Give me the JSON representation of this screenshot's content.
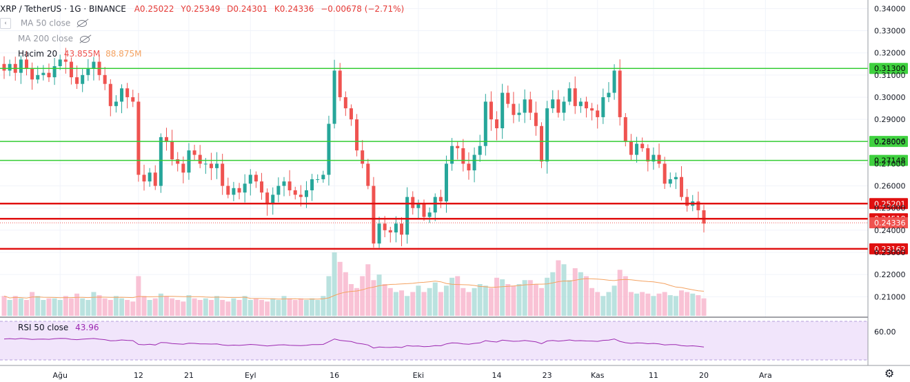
{
  "header": {
    "symbol": "XRP / TetherUS · 1G · BINANCE",
    "open": "A0.25022",
    "high": "Y0.25349",
    "low": "D0.24301",
    "close": "K0.24336",
    "change": "−0.00678 (−2.71%)"
  },
  "indicators": {
    "ma50": "MA 50 close",
    "ma200": "MA 200 close",
    "volume_label": "Hacim 20",
    "volume_v1": "43.855M",
    "volume_v2": "88.875M",
    "rsi_label": "RSI 50 close",
    "rsi_value": "43.96"
  },
  "colors": {
    "up": "#26a69a",
    "down": "#ef5350",
    "support_line": "#e01010",
    "resistance_line": "#33cc33",
    "rsi_line": "#9c27b0",
    "vol_ma": "#f4a261"
  },
  "chart_data": {
    "type": "candlestick",
    "symbol": "XRP / TetherUS",
    "interval": "1G",
    "exchange": "BINANCE",
    "y_range": [
      0.2045,
      0.3423
    ],
    "y_ticks": [
      "0.34000",
      "0.33000",
      "0.32000",
      "0.31000",
      "0.30000",
      "0.29000",
      "0.28000",
      "0.27000",
      "0.26000",
      "0.25000",
      "0.24000",
      "0.23000",
      "0.22000",
      "0.21000"
    ],
    "y_tick_values": [
      0.34,
      0.33,
      0.32,
      0.31,
      0.3,
      0.29,
      0.28,
      0.27,
      0.26,
      0.25,
      0.24,
      0.23,
      0.22,
      0.21
    ],
    "x_labels": [
      {
        "label": "Ağu",
        "index": 10
      },
      {
        "label": "12",
        "index": 24
      },
      {
        "label": "21",
        "index": 33
      },
      {
        "label": "Eyl",
        "index": 44
      },
      {
        "label": "16",
        "index": 59
      },
      {
        "label": "Eki",
        "index": 74
      },
      {
        "label": "14",
        "index": 88
      },
      {
        "label": "23",
        "index": 97
      },
      {
        "label": "Kas",
        "index": 106
      },
      {
        "label": "11",
        "index": 116
      },
      {
        "label": "20",
        "index": 125
      },
      {
        "label": "Ara",
        "index": 136
      }
    ],
    "horizontal_levels": [
      {
        "value": 0.313,
        "label": "0.31300",
        "color": "green"
      },
      {
        "value": 0.28006,
        "label": "0.28006",
        "color": "green"
      },
      {
        "value": 0.27148,
        "label": "0.27148",
        "color": "green"
      },
      {
        "value": 0.25201,
        "label": "0.25201",
        "color": "red"
      },
      {
        "value": 0.24518,
        "label": "0.24518",
        "color": "red"
      },
      {
        "value": 0.23162,
        "label": "0.23162",
        "color": "red"
      }
    ],
    "last_price": {
      "value": 0.24336,
      "label": "0.24336"
    },
    "closes": [
      0.312,
      0.315,
      0.311,
      0.317,
      0.313,
      0.308,
      0.31,
      0.311,
      0.309,
      0.314,
      0.317,
      0.316,
      0.309,
      0.306,
      0.31,
      0.313,
      0.316,
      0.31,
      0.306,
      0.296,
      0.298,
      0.304,
      0.3,
      0.298,
      0.265,
      0.262,
      0.266,
      0.26,
      0.282,
      0.28,
      0.272,
      0.27,
      0.266,
      0.276,
      0.274,
      0.27,
      0.27,
      0.268,
      0.27,
      0.26,
      0.256,
      0.259,
      0.257,
      0.261,
      0.265,
      0.262,
      0.257,
      0.252,
      0.256,
      0.26,
      0.262,
      0.258,
      0.256,
      0.255,
      0.258,
      0.263,
      0.263,
      0.265,
      0.288,
      0.312,
      0.3,
      0.295,
      0.29,
      0.276,
      0.27,
      0.26,
      0.234,
      0.243,
      0.24,
      0.239,
      0.243,
      0.238,
      0.255,
      0.25,
      0.252,
      0.246,
      0.248,
      0.255,
      0.253,
      0.27,
      0.278,
      0.277,
      0.27,
      0.267,
      0.274,
      0.278,
      0.298,
      0.29,
      0.286,
      0.302,
      0.297,
      0.292,
      0.293,
      0.299,
      0.293,
      0.287,
      0.271,
      0.295,
      0.299,
      0.293,
      0.298,
      0.304,
      0.296,
      0.298,
      0.295,
      0.294,
      0.291,
      0.3,
      0.302,
      0.312,
      0.291,
      0.28,
      0.274,
      0.279,
      0.277,
      0.271,
      0.274,
      0.27,
      0.261,
      0.263,
      0.264,
      0.255,
      0.251,
      0.253,
      0.249,
      0.243
    ],
    "volume_relative": [
      0.25,
      0.2,
      0.25,
      0.22,
      0.2,
      0.3,
      0.25,
      0.2,
      0.22,
      0.22,
      0.2,
      0.25,
      0.22,
      0.28,
      0.22,
      0.2,
      0.3,
      0.26,
      0.22,
      0.2,
      0.25,
      0.22,
      0.2,
      0.18,
      0.5,
      0.25,
      0.2,
      0.22,
      0.28,
      0.25,
      0.22,
      0.2,
      0.18,
      0.26,
      0.22,
      0.2,
      0.22,
      0.2,
      0.25,
      0.2,
      0.18,
      0.22,
      0.2,
      0.25,
      0.2,
      0.22,
      0.2,
      0.18,
      0.22,
      0.2,
      0.25,
      0.22,
      0.2,
      0.22,
      0.2,
      0.22,
      0.2,
      0.25,
      0.5,
      0.8,
      0.68,
      0.55,
      0.4,
      0.35,
      0.5,
      0.65,
      0.45,
      0.52,
      0.4,
      0.35,
      0.3,
      0.32,
      0.25,
      0.3,
      0.38,
      0.3,
      0.35,
      0.42,
      0.3,
      0.38,
      0.48,
      0.5,
      0.35,
      0.3,
      0.35,
      0.4,
      0.38,
      0.35,
      0.48,
      0.46,
      0.4,
      0.38,
      0.4,
      0.45,
      0.45,
      0.4,
      0.35,
      0.48,
      0.55,
      0.7,
      0.65,
      0.45,
      0.6,
      0.55,
      0.5,
      0.35,
      0.3,
      0.25,
      0.3,
      0.38,
      0.58,
      0.5,
      0.3,
      0.28,
      0.3,
      0.28,
      0.25,
      0.28,
      0.3,
      0.26,
      0.25,
      0.32,
      0.3,
      0.28,
      0.26,
      0.22
    ],
    "rsi": {
      "label": "RSI 50",
      "value": 43.96,
      "tick": "60.00"
    }
  }
}
